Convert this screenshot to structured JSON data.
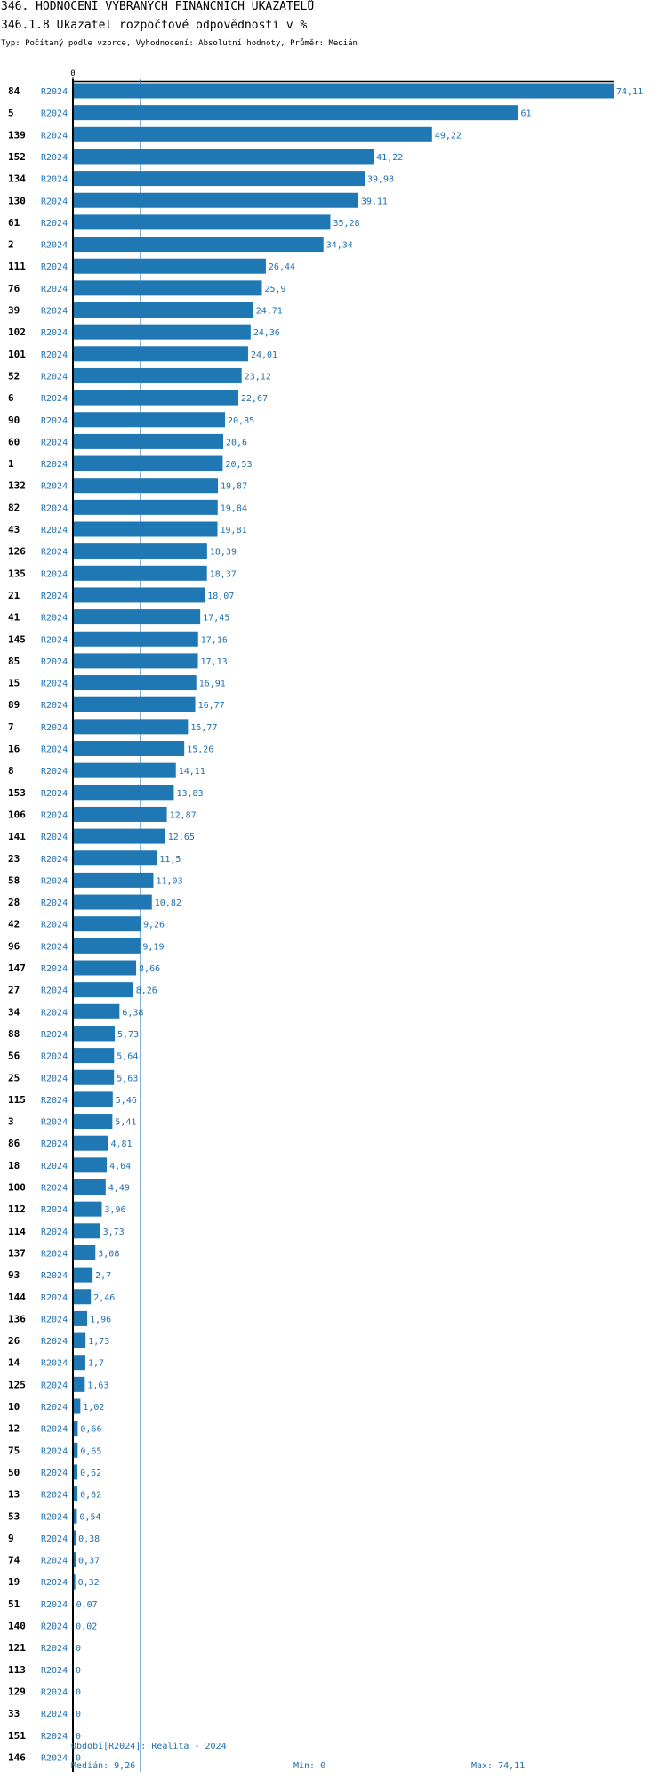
{
  "header": {
    "title": "346. HODNOCENÍ VYBRANÝCH FINANČNÍCH UKAZATELŮ",
    "chart_title": "346.1.8 Ukazatel rozpočtové odpovědnosti v %",
    "subtitle": "Typ: Počítaný podle vzorce, Vyhodnocení: Absolutní hodnoty, Průměr: Medián"
  },
  "colors": {
    "bar": "#1f77b4",
    "label": "#1f6fb0",
    "axis": "#000000"
  },
  "chart_data": {
    "type": "bar",
    "orientation": "horizontal",
    "axis_tick_label": "0",
    "period_label": "R2024",
    "categories": [
      "84",
      "5",
      "139",
      "152",
      "134",
      "130",
      "61",
      "2",
      "111",
      "76",
      "39",
      "102",
      "101",
      "52",
      "6",
      "90",
      "60",
      "1",
      "132",
      "82",
      "43",
      "126",
      "135",
      "21",
      "41",
      "145",
      "85",
      "15",
      "89",
      "7",
      "16",
      "8",
      "153",
      "106",
      "141",
      "23",
      "58",
      "28",
      "42",
      "96",
      "147",
      "27",
      "34",
      "88",
      "56",
      "25",
      "115",
      "3",
      "86",
      "18",
      "100",
      "112",
      "114",
      "137",
      "93",
      "144",
      "136",
      "26",
      "14",
      "125",
      "10",
      "12",
      "75",
      "50",
      "13",
      "53",
      "9",
      "74",
      "19",
      "51",
      "140",
      "121",
      "113",
      "129",
      "33",
      "151",
      "146"
    ],
    "values": [
      74.11,
      61,
      49.22,
      41.22,
      39.98,
      39.11,
      35.28,
      34.34,
      26.44,
      25.9,
      24.71,
      24.36,
      24.01,
      23.12,
      22.67,
      20.85,
      20.6,
      20.53,
      19.87,
      19.84,
      19.81,
      18.39,
      18.37,
      18.07,
      17.45,
      17.16,
      17.13,
      16.91,
      16.77,
      15.77,
      15.26,
      14.11,
      13.83,
      12.87,
      12.65,
      11.5,
      11.03,
      10.82,
      9.26,
      9.19,
      8.66,
      8.26,
      6.38,
      5.73,
      5.64,
      5.63,
      5.46,
      5.41,
      4.81,
      4.64,
      4.49,
      3.96,
      3.73,
      3.08,
      2.7,
      2.46,
      1.96,
      1.73,
      1.7,
      1.63,
      1.02,
      0.66,
      0.65,
      0.62,
      0.62,
      0.54,
      0.38,
      0.37,
      0.32,
      0.07,
      0.02,
      0,
      0,
      0,
      0,
      0,
      0
    ],
    "value_labels": [
      "74,11",
      "61",
      "49,22",
      "41,22",
      "39,98",
      "39,11",
      "35,28",
      "34,34",
      "26,44",
      "25,9",
      "24,71",
      "24,36",
      "24,01",
      "23,12",
      "22,67",
      "20,85",
      "20,6",
      "20,53",
      "19,87",
      "19,84",
      "19,81",
      "18,39",
      "18,37",
      "18,07",
      "17,45",
      "17,16",
      "17,13",
      "16,91",
      "16,77",
      "15,77",
      "15,26",
      "14,11",
      "13,83",
      "12,87",
      "12,65",
      "11,5",
      "11,03",
      "10,82",
      "9,26",
      "9,19",
      "8,66",
      "8,26",
      "6,38",
      "5,73",
      "5,64",
      "5,63",
      "5,46",
      "5,41",
      "4,81",
      "4,64",
      "4,49",
      "3,96",
      "3,73",
      "3,08",
      "2,7",
      "2,46",
      "1,96",
      "1,73",
      "1,7",
      "1,63",
      "1,02",
      "0,66",
      "0,65",
      "0,62",
      "0,62",
      "0,54",
      "0,38",
      "0,37",
      "0,32",
      "0,07",
      "0,02",
      "0",
      "0",
      "0",
      "0",
      "0",
      "0"
    ],
    "xlim": [
      0,
      74.11
    ],
    "median": 9.26
  },
  "footer": {
    "period": "Období[R2024]: Realita - 2024",
    "median": "Medián: 9,26",
    "min": "Min: 0",
    "max": "Max: 74,11"
  }
}
